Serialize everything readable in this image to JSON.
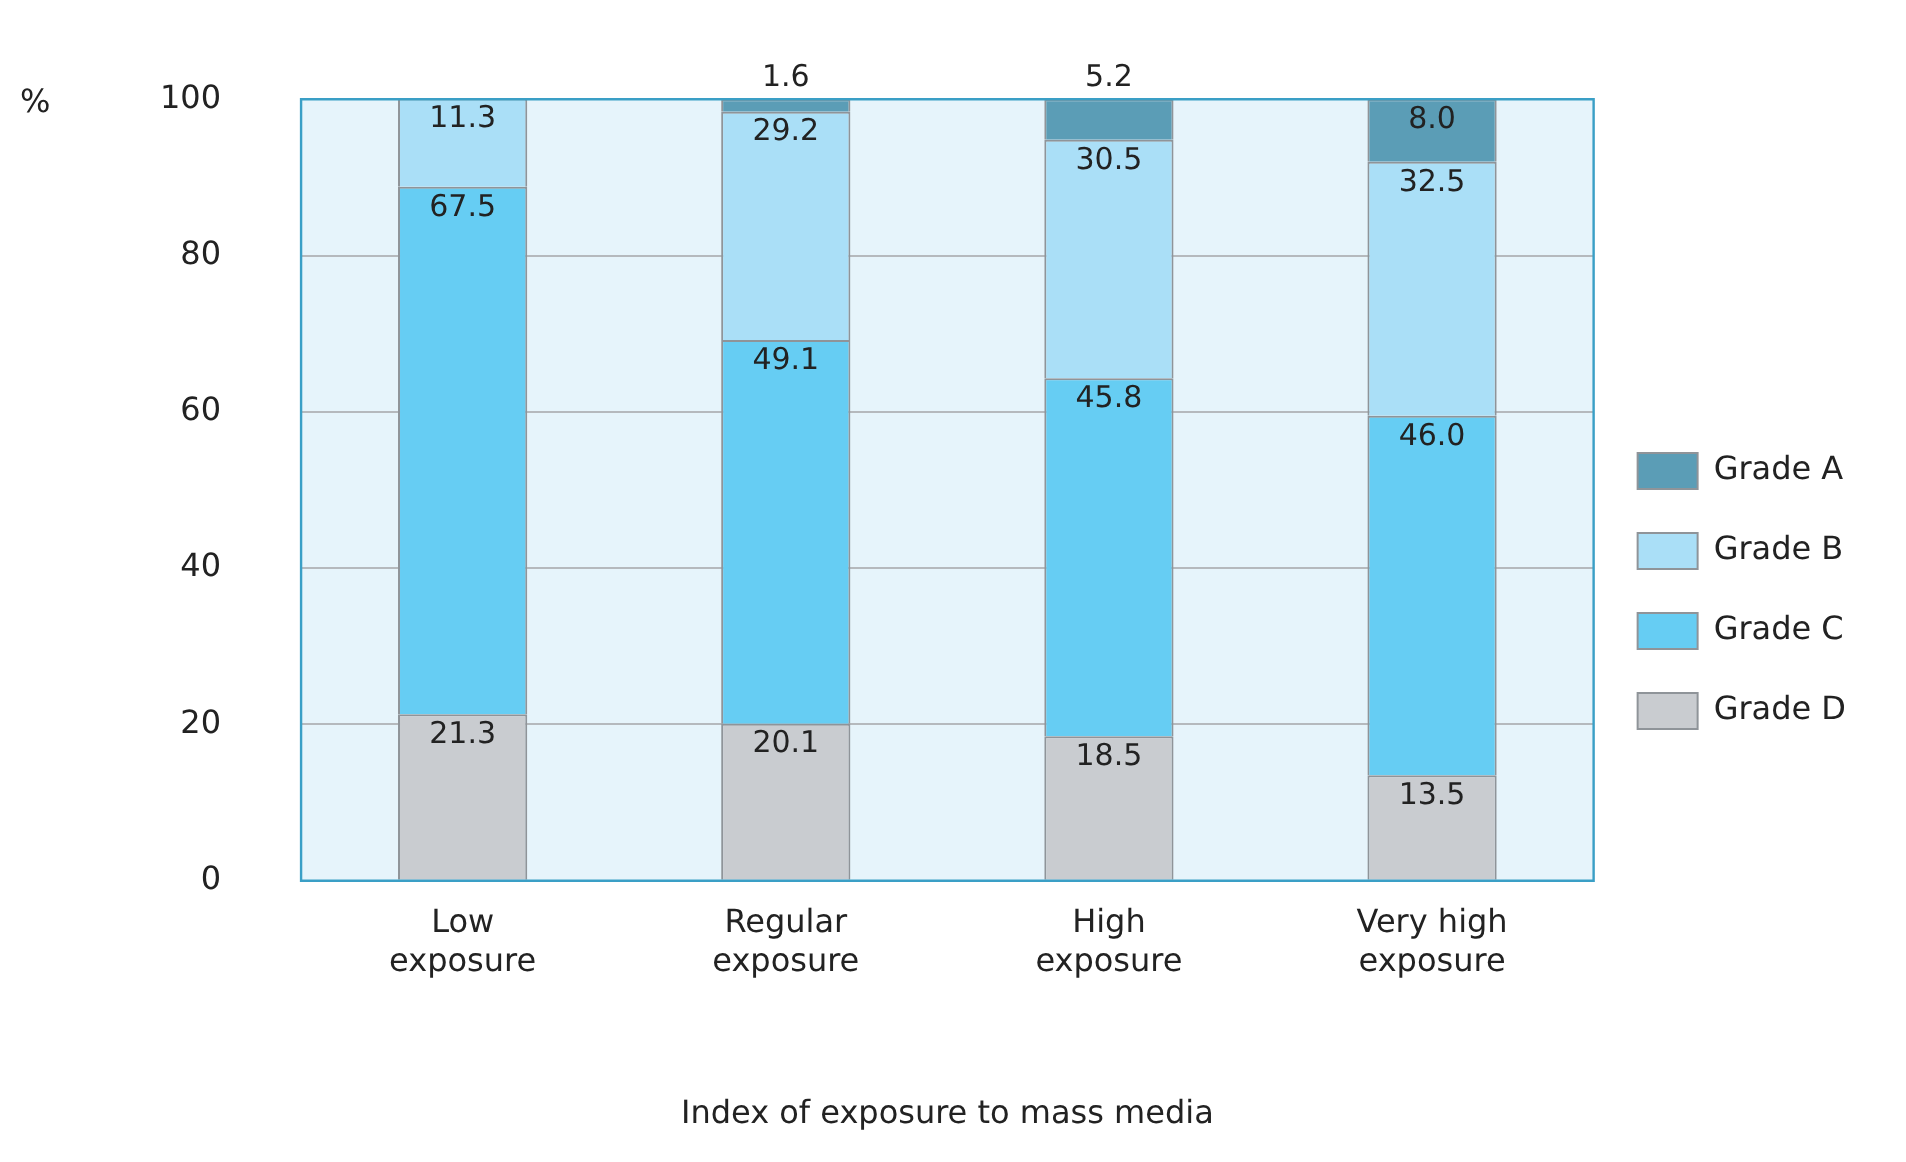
{
  "chart_data": {
    "type": "bar",
    "stacked": true,
    "xlabel": "Index of exposure to mass media",
    "ylabel": "%",
    "categories": [
      "Low exposure",
      "Regular exposure",
      "High exposure",
      "Very high exposure"
    ],
    "series": [
      {
        "name": "Grade D",
        "color": "#c9ccd0",
        "values": [
          21.3,
          20.1,
          18.5,
          13.5
        ],
        "value_labels": [
          "21.3",
          "20.1",
          "18.5",
          "13.5"
        ]
      },
      {
        "name": "Grade C",
        "color": "#66cdf3",
        "values": [
          67.5,
          49.1,
          45.8,
          46.0
        ],
        "value_labels": [
          "67.5",
          "49.1",
          "45.8",
          "46.0"
        ]
      },
      {
        "name": "Grade B",
        "color": "#aadff7",
        "values": [
          11.3,
          29.2,
          30.5,
          32.5
        ],
        "value_labels": [
          "11.3",
          "29.2",
          "30.5",
          "32.5"
        ]
      },
      {
        "name": "Grade A",
        "color": "#5b9db6",
        "values": [
          null,
          1.6,
          5.2,
          8.0
        ],
        "value_labels": [
          null,
          "1.6",
          "5.2",
          "8.0"
        ]
      }
    ],
    "ylim": [
      0,
      100
    ],
    "yticks": [
      0,
      20,
      40,
      60,
      80,
      100
    ],
    "grid": "y",
    "legend": "right"
  }
}
